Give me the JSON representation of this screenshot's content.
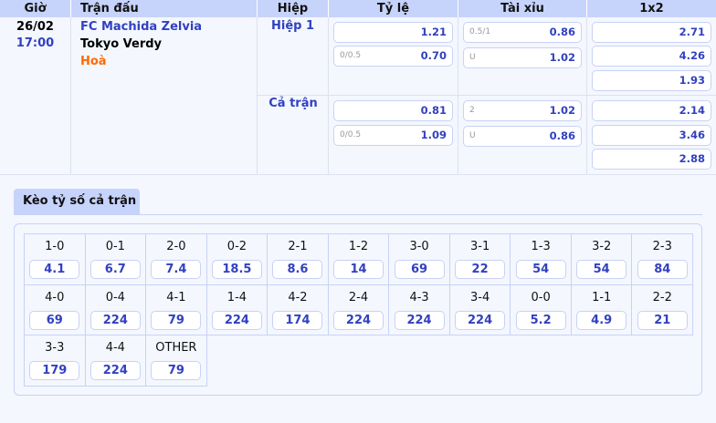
{
  "headers": [
    "Giờ",
    "Trận đấu",
    "Hiệp",
    "Tỷ lệ",
    "Tài xỉu",
    "1x2"
  ],
  "match": {
    "date": "26/02",
    "time": "17:00",
    "home": "FC Machida Zelvia",
    "away": "Tokyo Verdy",
    "draw": "Hoà"
  },
  "periods": [
    {
      "label": "Hiệp 1",
      "handicap": [
        {
          "line": "",
          "odds": "1.21"
        },
        {
          "line": "0/0.5",
          "odds": "0.70"
        }
      ],
      "overunder": [
        {
          "line": "0.5/1",
          "odds": "0.86"
        },
        {
          "line": "U",
          "odds": "1.02"
        }
      ],
      "x12": [
        "2.71",
        "4.26",
        "1.93"
      ]
    },
    {
      "label": "Cả trận",
      "handicap": [
        {
          "line": "",
          "odds": "0.81"
        },
        {
          "line": "0/0.5",
          "odds": "1.09"
        }
      ],
      "overunder": [
        {
          "line": "2",
          "odds": "1.02"
        },
        {
          "line": "U",
          "odds": "0.86"
        }
      ],
      "x12": [
        "2.14",
        "3.46",
        "2.88"
      ]
    }
  ],
  "correct_score": {
    "tab_label": "Kèo tỷ số cả trận",
    "items": [
      {
        "score": "1-0",
        "odds": "4.1"
      },
      {
        "score": "0-1",
        "odds": "6.7"
      },
      {
        "score": "2-0",
        "odds": "7.4"
      },
      {
        "score": "0-2",
        "odds": "18.5"
      },
      {
        "score": "2-1",
        "odds": "8.6"
      },
      {
        "score": "1-2",
        "odds": "14"
      },
      {
        "score": "3-0",
        "odds": "69"
      },
      {
        "score": "3-1",
        "odds": "22"
      },
      {
        "score": "1-3",
        "odds": "54"
      },
      {
        "score": "3-2",
        "odds": "54"
      },
      {
        "score": "2-3",
        "odds": "84"
      },
      {
        "score": "4-0",
        "odds": "69"
      },
      {
        "score": "0-4",
        "odds": "224"
      },
      {
        "score": "4-1",
        "odds": "79"
      },
      {
        "score": "1-4",
        "odds": "224"
      },
      {
        "score": "4-2",
        "odds": "174"
      },
      {
        "score": "2-4",
        "odds": "224"
      },
      {
        "score": "4-3",
        "odds": "224"
      },
      {
        "score": "3-4",
        "odds": "224"
      },
      {
        "score": "0-0",
        "odds": "5.2"
      },
      {
        "score": "1-1",
        "odds": "4.9"
      },
      {
        "score": "2-2",
        "odds": "21"
      },
      {
        "score": "3-3",
        "odds": "179"
      },
      {
        "score": "4-4",
        "odds": "224"
      },
      {
        "score": "OTHER",
        "odds": "79"
      }
    ]
  },
  "colors": {
    "header_bg": "#c6d3fb",
    "odds": "#3141c0",
    "home": "#3141c0",
    "draw": "#ff6a00"
  }
}
